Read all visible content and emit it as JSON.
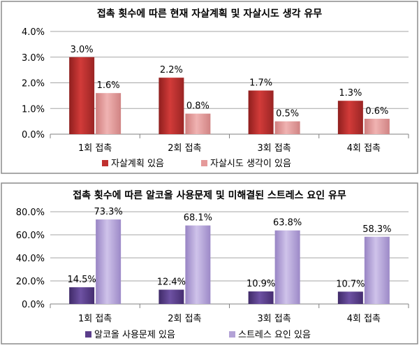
{
  "chart_data": [
    {
      "type": "bar",
      "title": "접촉 횟수에 따른 현재 자살계획 및 자살시도 생각 유무",
      "categories": [
        "1회 접촉",
        "2회 접촉",
        "3회 접촉",
        "4회 접촉"
      ],
      "series": [
        {
          "name": "자살계획 있음",
          "values": [
            3.0,
            2.2,
            1.7,
            1.3
          ],
          "labels": [
            "3.0%",
            "2.2%",
            "1.7%",
            "1.3%"
          ],
          "color": "#c0302f"
        },
        {
          "name": "자살시도 생각이 있음",
          "values": [
            1.6,
            0.8,
            0.5,
            0.6
          ],
          "labels": [
            "1.6%",
            "0.8%",
            "0.5%",
            "0.6%"
          ],
          "color": "#e59a9a"
        }
      ],
      "ylim": [
        0,
        4.0
      ],
      "yticks": [
        0,
        1.0,
        2.0,
        3.0,
        4.0
      ],
      "ytick_labels": [
        "0.0%",
        "1.0%",
        "2.0%",
        "3.0%",
        "4.0%"
      ],
      "grid": true,
      "legend": "bottom"
    },
    {
      "type": "bar",
      "title": "접촉 횟수에 따른 알코올 사용문제 및 미해결된 스트레스 요인 유무",
      "categories": [
        "1회 접촉",
        "2회 접촉",
        "3회 접촉",
        "4회 접촉"
      ],
      "series": [
        {
          "name": "알코올 사용문제 있음",
          "values": [
            14.5,
            12.4,
            10.9,
            10.7
          ],
          "labels": [
            "14.5%",
            "12.4%",
            "10.9%",
            "10.7%"
          ],
          "color": "#5a3d8a"
        },
        {
          "name": "스트레스 요인 있음",
          "values": [
            73.3,
            68.1,
            63.8,
            58.3
          ],
          "labels": [
            "73.3%",
            "68.1%",
            "63.8%",
            "58.3%"
          ],
          "color": "#b3a2d6"
        }
      ],
      "ylim": [
        0,
        80.0
      ],
      "yticks": [
        0,
        20.0,
        40.0,
        60.0,
        80.0
      ],
      "ytick_labels": [
        "0.0%",
        "20.0%",
        "40.0%",
        "60.0%",
        "80.0%"
      ],
      "grid": true,
      "legend": "bottom"
    }
  ]
}
